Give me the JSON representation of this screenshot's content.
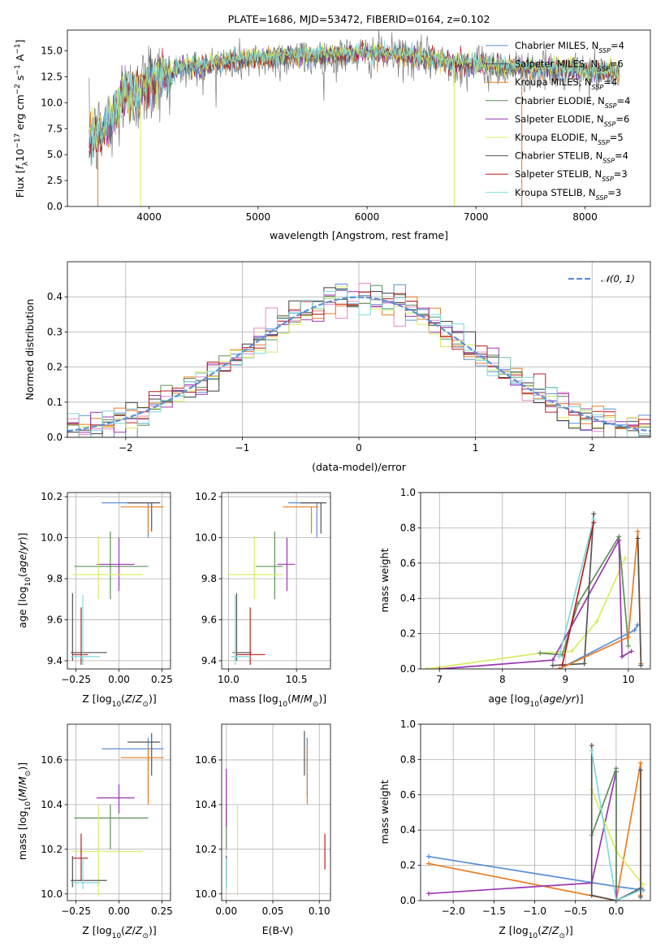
{
  "colors": {
    "Chabrier MILES": "#5a8fd8",
    "Salpeter MILES": "#555555",
    "Kroupa MILES": "#e87d22",
    "Chabrier ELODIE": "#5e8f5a",
    "Salpeter ELODIE": "#9a35b0",
    "Kroupa ELODIE": "#d8ec5e",
    "Chabrier STELIB": "#555555",
    "Salpeter STELIB": "#b81d1d",
    "Kroupa STELIB": "#7fd8dc",
    "gauss": "#5a8fd8"
  },
  "chart_data": [
    {
      "id": "spectrum",
      "type": "line",
      "title": "PLATE=1686, MJD=53472, FIBERID=0164, z=0.102",
      "xlabel": "wavelength [Angstrom, rest frame]",
      "ylabel": "Flux [fλ10⁻¹⁷ erg cm⁻² s⁻¹ A⁻¹]",
      "xlim": [
        3250,
        8600
      ],
      "ylim": [
        0,
        17
      ],
      "xticks": [
        "4000",
        "5000",
        "6000",
        "7000",
        "8000"
      ],
      "yticks": [
        "0.0",
        "2.5",
        "5.0",
        "7.5",
        "10.0",
        "12.5",
        "15.0"
      ],
      "grid": false,
      "legend_position": "top-right",
      "legend": [
        {
          "name": "Chabrier MILES, N",
          "sub": "SSP",
          "tail": "=4",
          "key": "Chabrier MILES"
        },
        {
          "name": "Salpeter MILES, N",
          "sub": "SSP",
          "tail": "=6",
          "key": "Salpeter MILES"
        },
        {
          "name": "Kroupa MILES, N",
          "sub": "SSP",
          "tail": "=4",
          "key": "Kroupa MILES"
        },
        {
          "name": "Chabrier ELODIE, N",
          "sub": "SSP",
          "tail": "=4",
          "key": "Chabrier ELODIE"
        },
        {
          "name": "Salpeter ELODIE, N",
          "sub": "SSP",
          "tail": "=6",
          "key": "Salpeter ELODIE"
        },
        {
          "name": "Kroupa ELODIE, N",
          "sub": "SSP",
          "tail": "=5",
          "key": "Kroupa ELODIE"
        },
        {
          "name": "Chabrier STELIB, N",
          "sub": "SSP",
          "tail": "=4",
          "key": "Chabrier STELIB"
        },
        {
          "name": "Salpeter STELIB, N",
          "sub": "SSP",
          "tail": "=3",
          "key": "Salpeter STELIB"
        },
        {
          "name": "Kroupa STELIB, N",
          "sub": "SSP",
          "tail": "=3",
          "key": "Kroupa STELIB"
        }
      ],
      "envelope": {
        "x": [
          3450,
          3550,
          3650,
          3750,
          3850,
          3950,
          4050,
          4150,
          4300,
          4500,
          4700,
          4900,
          5100,
          5300,
          5500,
          5700,
          5900,
          6100,
          6300,
          6500,
          6700,
          6900,
          7100,
          7300,
          7500,
          7700,
          7900,
          8100,
          8320
        ],
        "y": [
          6.5,
          7.0,
          8.5,
          10.5,
          11.0,
          11.5,
          12.5,
          12.5,
          13.5,
          13.5,
          14.0,
          14.2,
          14.3,
          14.5,
          14.6,
          14.6,
          14.8,
          14.8,
          14.6,
          14.4,
          14.0,
          13.8,
          13.6,
          13.4,
          13.3,
          13.2,
          13.2,
          13.0,
          13.0
        ]
      },
      "dropouts": [
        {
          "x": 3530,
          "color": "Kroupa MILES"
        },
        {
          "x": 3920,
          "color": "Kroupa ELODIE"
        },
        {
          "x": 6800,
          "color": "Kroupa ELODIE"
        },
        {
          "x": 7420,
          "color": "Kroupa MILES"
        }
      ]
    },
    {
      "id": "residuals",
      "type": "line",
      "xlabel": "(data-model)/error",
      "ylabel": "Normed distribution",
      "xlim": [
        -2.5,
        2.5
      ],
      "ylim": [
        0,
        0.5
      ],
      "xticks": [
        "−2",
        "−1",
        "0",
        "1",
        "2"
      ],
      "yticks": [
        "0.0",
        "0.1",
        "0.2",
        "0.3",
        "0.4"
      ],
      "grid": true,
      "legend_position": "top-right",
      "legend": "𝒩(0, 1)",
      "bin_width": 0.1,
      "reference_curve": "standard normal"
    },
    {
      "id": "age-vs-Z",
      "type": "scatter",
      "xlabel": "Z [log10(Z/Z⊙)]",
      "ylabel": "age [log10(age/yr)]",
      "xlim": [
        -0.3,
        0.3
      ],
      "ylim": [
        9.36,
        10.22
      ],
      "xticks": [
        "−0.25",
        "0.00",
        "0.25"
      ],
      "yticks": [
        "9.4",
        "9.6",
        "9.8",
        "10.0",
        "10.2"
      ],
      "points": [
        {
          "key": "Chabrier MILES",
          "x": 0.17,
          "y": 10.17,
          "xe": [
            -0.1,
            0.2
          ],
          "ye": [
            10.0,
            10.17
          ]
        },
        {
          "key": "Salpeter MILES",
          "x": 0.19,
          "y": 10.17,
          "xe": [
            0.05,
            0.24
          ],
          "ye": [
            10.03,
            10.17
          ]
        },
        {
          "key": "Kroupa MILES",
          "x": 0.17,
          "y": 10.15,
          "xe": [
            0.01,
            0.26
          ],
          "ye": [
            10.02,
            10.15
          ]
        },
        {
          "key": "Chabrier ELODIE",
          "x": -0.05,
          "y": 9.86,
          "xe": [
            -0.26,
            0.17
          ],
          "ye": [
            9.7,
            10.03
          ]
        },
        {
          "key": "Salpeter ELODIE",
          "x": 0.0,
          "y": 9.87,
          "xe": [
            -0.13,
            0.09
          ],
          "ye": [
            9.74,
            10.0
          ]
        },
        {
          "key": "Kroupa ELODIE",
          "x": -0.12,
          "y": 9.82,
          "xe": [
            -0.27,
            0.14
          ],
          "ye": [
            9.7,
            10.01
          ]
        },
        {
          "key": "Chabrier STELIB",
          "x": -0.27,
          "y": 9.44,
          "xe": [
            -0.28,
            -0.07
          ],
          "ye": [
            9.4,
            9.73
          ]
        },
        {
          "key": "Salpeter STELIB",
          "x": -0.22,
          "y": 9.43,
          "xe": [
            -0.27,
            -0.18
          ],
          "ye": [
            9.38,
            9.66
          ]
        },
        {
          "key": "Kroupa STELIB",
          "x": -0.21,
          "y": 9.42,
          "xe": [
            -0.28,
            -0.11
          ],
          "ye": [
            9.38,
            9.72
          ]
        }
      ]
    },
    {
      "id": "age-vs-mass",
      "type": "scatter",
      "xlabel": "mass [log10(M/M⊙)]",
      "ylabel": "",
      "xlim": [
        9.95,
        10.75
      ],
      "ylim": [
        9.36,
        10.22
      ],
      "xticks": [
        "10.0",
        "10.5"
      ],
      "yticks": [
        "9.4",
        "9.6",
        "9.8",
        "10.0",
        "10.2"
      ],
      "points": [
        {
          "key": "Chabrier MILES",
          "x": 10.65,
          "y": 10.17,
          "xe": [
            10.44,
            10.7
          ],
          "ye": [
            10.0,
            10.17
          ]
        },
        {
          "key": "Salpeter MILES",
          "x": 10.68,
          "y": 10.17,
          "xe": [
            10.53,
            10.72
          ],
          "ye": [
            10.02,
            10.17
          ]
        },
        {
          "key": "Kroupa MILES",
          "x": 10.61,
          "y": 10.15,
          "xe": [
            10.4,
            10.66
          ],
          "ye": [
            10.02,
            10.15
          ]
        },
        {
          "key": "Chabrier ELODIE",
          "x": 10.34,
          "y": 9.86,
          "xe": [
            10.2,
            10.4
          ],
          "ye": [
            9.7,
            10.03
          ]
        },
        {
          "key": "Salpeter ELODIE",
          "x": 10.43,
          "y": 9.87,
          "xe": [
            10.36,
            10.49
          ],
          "ye": [
            9.74,
            10.0
          ]
        },
        {
          "key": "Kroupa ELODIE",
          "x": 10.19,
          "y": 9.82,
          "xe": [
            9.99,
            10.4
          ],
          "ye": [
            9.7,
            10.01
          ]
        },
        {
          "key": "Chabrier STELIB",
          "x": 10.06,
          "y": 9.44,
          "xe": [
            10.03,
            10.17
          ],
          "ye": [
            9.4,
            9.73
          ]
        },
        {
          "key": "Salpeter STELIB",
          "x": 10.16,
          "y": 9.43,
          "xe": [
            10.06,
            10.27
          ],
          "ye": [
            9.38,
            9.66
          ]
        },
        {
          "key": "Kroupa STELIB",
          "x": 10.05,
          "y": 9.42,
          "xe": [
            10.02,
            10.16
          ],
          "ye": [
            9.38,
            9.72
          ]
        }
      ]
    },
    {
      "id": "weight-vs-age",
      "type": "line",
      "xlabel": "age [log10(age/yr)]",
      "ylabel": "mass weight",
      "xlim": [
        6.7,
        10.35
      ],
      "ylim": [
        0,
        1
      ],
      "xticks": [
        "7",
        "8",
        "9",
        "10"
      ],
      "yticks": [
        "0.0",
        "0.2",
        "0.4",
        "0.6",
        "0.8",
        "1.0"
      ],
      "grid": true,
      "series": [
        {
          "key": "Kroupa ELODIE",
          "x": [
            6.8,
            8.6,
            9.1,
            9.5,
            9.95
          ],
          "y": [
            0.0,
            0.09,
            0.1,
            0.27,
            0.63
          ]
        },
        {
          "key": "Chabrier ELODIE",
          "x": [
            8.6,
            8.95,
            9.2,
            9.85,
            10.0
          ],
          "y": [
            0.09,
            0.08,
            0.37,
            0.75,
            0.13
          ]
        },
        {
          "key": "Salpeter ELODIE",
          "x": [
            7.0,
            8.8,
            9.85,
            9.9,
            10.05
          ],
          "y": [
            0.0,
            0.05,
            0.73,
            0.07,
            0.1
          ]
        },
        {
          "key": "Chabrier STELIB",
          "x": [
            8.8,
            9.3,
            9.45
          ],
          "y": [
            0.02,
            0.03,
            0.88
          ]
        },
        {
          "key": "Kroupa STELIB",
          "x": [
            8.9,
            9.45
          ],
          "y": [
            0.07,
            0.85
          ]
        },
        {
          "key": "Salpeter STELIB",
          "x": [
            8.95,
            9.45
          ],
          "y": [
            0.02,
            0.83
          ]
        },
        {
          "key": "Chabrier MILES",
          "x": [
            8.9,
            10.1,
            10.15
          ],
          "y": [
            0.0,
            0.22,
            0.25
          ]
        },
        {
          "key": "Kroupa MILES",
          "x": [
            8.9,
            10.0,
            10.15,
            10.2
          ],
          "y": [
            0.0,
            0.18,
            0.78,
            0.03
          ]
        },
        {
          "key": "Salpeter MILES",
          "x": [
            10.15,
            10.2
          ],
          "y": [
            0.74,
            0.02
          ]
        }
      ]
    },
    {
      "id": "mass-vs-Z",
      "type": "scatter",
      "xlabel": "Z [log10(Z/Z⊙)]",
      "ylabel": "mass [log10(M/M⊙)]",
      "xlim": [
        -0.3,
        0.3
      ],
      "ylim": [
        9.97,
        10.76
      ],
      "xticks": [
        "−0.25",
        "0.00",
        "0.25"
      ],
      "yticks": [
        "10.0",
        "10.2",
        "10.4",
        "10.6"
      ],
      "points": [
        {
          "key": "Chabrier MILES",
          "x": 0.17,
          "y": 10.65,
          "xe": [
            -0.1,
            0.26
          ],
          "ye": [
            10.44,
            10.7
          ]
        },
        {
          "key": "Salpeter MILES",
          "x": 0.19,
          "y": 10.68,
          "xe": [
            0.05,
            0.24
          ],
          "ye": [
            10.53,
            10.72
          ]
        },
        {
          "key": "Kroupa MILES",
          "x": 0.17,
          "y": 10.61,
          "xe": [
            0.01,
            0.26
          ],
          "ye": [
            10.4,
            10.66
          ]
        },
        {
          "key": "Chabrier ELODIE",
          "x": -0.05,
          "y": 10.34,
          "xe": [
            -0.26,
            0.17
          ],
          "ye": [
            10.2,
            10.4
          ]
        },
        {
          "key": "Salpeter ELODIE",
          "x": 0.0,
          "y": 10.43,
          "xe": [
            -0.13,
            0.09
          ],
          "ye": [
            10.36,
            10.49
          ]
        },
        {
          "key": "Kroupa ELODIE",
          "x": -0.12,
          "y": 10.19,
          "xe": [
            -0.27,
            0.14
          ],
          "ye": [
            9.99,
            10.4
          ]
        },
        {
          "key": "Chabrier STELIB",
          "x": -0.27,
          "y": 10.06,
          "xe": [
            -0.28,
            -0.07
          ],
          "ye": [
            10.03,
            10.17
          ]
        },
        {
          "key": "Salpeter STELIB",
          "x": -0.22,
          "y": 10.16,
          "xe": [
            -0.27,
            -0.18
          ],
          "ye": [
            10.06,
            10.27
          ]
        },
        {
          "key": "Kroupa STELIB",
          "x": -0.21,
          "y": 10.05,
          "xe": [
            -0.28,
            -0.11
          ],
          "ye": [
            10.02,
            10.16
          ]
        }
      ]
    },
    {
      "id": "mass-vs-EBV",
      "type": "scatter",
      "xlabel": "E(B-V)",
      "ylabel": "",
      "xlim": [
        -0.005,
        0.112
      ],
      "ylim": [
        9.97,
        10.76
      ],
      "xticks": [
        "0.00",
        "0.05",
        "0.10"
      ],
      "yticks": [
        "10.0",
        "10.2",
        "10.4",
        "10.6"
      ],
      "points": [
        {
          "key": "Chabrier MILES",
          "x": 0.087,
          "y": 10.65,
          "ye": [
            10.44,
            10.7
          ]
        },
        {
          "key": "Salpeter MILES",
          "x": 0.084,
          "y": 10.68,
          "ye": [
            10.53,
            10.73
          ]
        },
        {
          "key": "Kroupa MILES",
          "x": 0.087,
          "y": 10.61,
          "ye": [
            10.4,
            10.66
          ]
        },
        {
          "key": "Chabrier ELODIE",
          "x": 0.0,
          "y": 10.34,
          "ye": [
            10.2,
            10.4
          ]
        },
        {
          "key": "Salpeter ELODIE",
          "x": 0.0,
          "y": 10.43,
          "ye": [
            10.3,
            10.56
          ]
        },
        {
          "key": "Kroupa ELODIE",
          "x": 0.012,
          "y": 10.19,
          "ye": [
            9.99,
            10.4
          ]
        },
        {
          "key": "Chabrier STELIB",
          "x": 0.0,
          "y": 10.06,
          "ye": [
            10.03,
            10.17
          ]
        },
        {
          "key": "Salpeter STELIB",
          "x": 0.106,
          "y": 10.16,
          "ye": [
            10.11,
            10.27
          ]
        },
        {
          "key": "Kroupa STELIB",
          "x": 0.0,
          "y": 10.05,
          "ye": [
            10.02,
            10.16
          ]
        }
      ]
    },
    {
      "id": "weight-vs-Z",
      "type": "line",
      "xlabel": "Z [log10(Z/Z⊙)]",
      "ylabel": "mass weight",
      "xlim": [
        -2.4,
        0.42
      ],
      "ylim": [
        0,
        1
      ],
      "xticks": [
        "−2.0",
        "−1.5",
        "−1.0",
        "−0.5",
        "0.0"
      ],
      "yticks": [
        "0.0",
        "0.2",
        "0.4",
        "0.6",
        "0.8",
        "1.0"
      ],
      "grid": true,
      "series": [
        {
          "key": "Chabrier MILES",
          "x": [
            -2.3,
            0.0,
            0.33
          ],
          "y": [
            0.25,
            0.08,
            0.06
          ]
        },
        {
          "key": "Kroupa MILES",
          "x": [
            -2.3,
            0.0,
            0.3,
            0.3
          ],
          "y": [
            0.21,
            0.0,
            0.78,
            0.03
          ]
        },
        {
          "key": "Salpeter ELODIE",
          "x": [
            -2.3,
            -0.3,
            0.0,
            0.0
          ],
          "y": [
            0.04,
            0.1,
            0.73,
            0.0
          ]
        },
        {
          "key": "Kroupa ELODIE",
          "x": [
            -0.3,
            0.0,
            0.33
          ],
          "y": [
            0.63,
            0.28,
            0.09
          ]
        },
        {
          "key": "Chabrier ELODIE",
          "x": [
            -0.3,
            0.0,
            0.0
          ],
          "y": [
            0.37,
            0.75,
            0.08
          ]
        },
        {
          "key": "Chabrier STELIB",
          "x": [
            -0.3,
            -0.3,
            0.0,
            0.3
          ],
          "y": [
            0.88,
            0.03,
            0.0,
            0.07
          ]
        },
        {
          "key": "Kroupa STELIB",
          "x": [
            -0.3,
            0.0,
            0.3
          ],
          "y": [
            0.85,
            0.0,
            0.06
          ]
        },
        {
          "key": "Salpeter MILES",
          "x": [
            0.3,
            0.3
          ],
          "y": [
            0.74,
            0.02
          ]
        }
      ]
    }
  ]
}
